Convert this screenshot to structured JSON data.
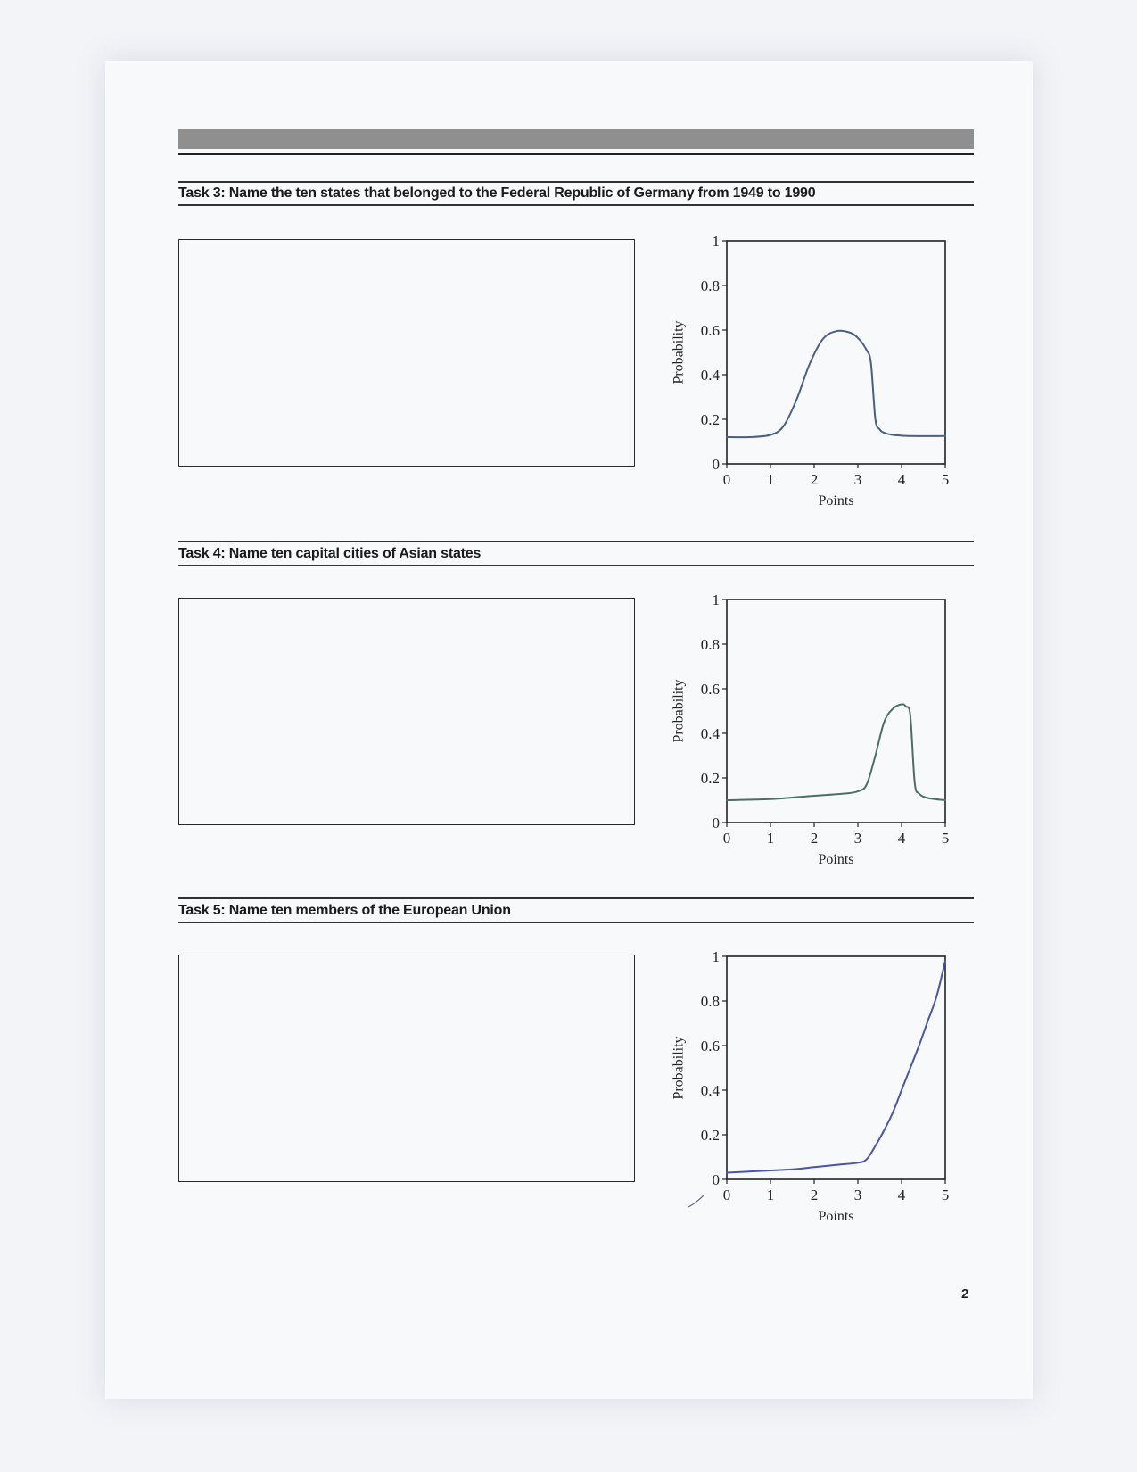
{
  "tasks": [
    {
      "title": "Task 3: Name the ten states that belonged to the Federal Republic of Germany from 1949 to 1990"
    },
    {
      "title": "Task 4: Name ten capital cities of Asian states"
    },
    {
      "title": "Task 5: Name ten members of the European Union"
    }
  ],
  "page_number": "2",
  "colors": {
    "curve_task3": "#4a5f85",
    "curve_task4": "#4d6f63",
    "curve_task5": "#4b55a8"
  },
  "chart_data": [
    {
      "type": "line",
      "xlabel": "Points",
      "ylabel": "Probability",
      "xlim": [
        0,
        5
      ],
      "ylim": [
        0,
        1
      ],
      "xticks": [
        "0",
        "1",
        "2",
        "3",
        "4",
        "5"
      ],
      "yticks": [
        "0",
        "0.2",
        "0.4",
        "0.6",
        "0.8",
        "1"
      ],
      "x": [
        0,
        0.5,
        1.0,
        1.3,
        1.6,
        1.9,
        2.2,
        2.5,
        2.8,
        3.0,
        3.2,
        3.3,
        3.4,
        3.5,
        3.6,
        3.8,
        4.2,
        5.0
      ],
      "y": [
        0.12,
        0.12,
        0.13,
        0.17,
        0.29,
        0.45,
        0.56,
        0.595,
        0.59,
        0.565,
        0.51,
        0.45,
        0.2,
        0.155,
        0.14,
        0.13,
        0.125,
        0.125
      ]
    },
    {
      "type": "line",
      "xlabel": "Points",
      "ylabel": "Probability",
      "xlim": [
        0,
        5
      ],
      "ylim": [
        0,
        1
      ],
      "xticks": [
        "0",
        "1",
        "2",
        "3",
        "4",
        "5"
      ],
      "yticks": [
        "0",
        "0.2",
        "0.4",
        "0.6",
        "0.8",
        "1"
      ],
      "x": [
        0,
        1,
        2,
        2.7,
        3.0,
        3.2,
        3.4,
        3.6,
        3.8,
        4.0,
        4.1,
        4.2,
        4.3,
        4.4,
        4.6,
        5.0
      ],
      "y": [
        0.1,
        0.105,
        0.12,
        0.13,
        0.14,
        0.17,
        0.3,
        0.45,
        0.51,
        0.53,
        0.52,
        0.48,
        0.18,
        0.13,
        0.11,
        0.1
      ]
    },
    {
      "type": "line",
      "xlabel": "Points",
      "ylabel": "Probability",
      "xlim": [
        0,
        5
      ],
      "ylim": [
        0,
        1
      ],
      "xticks": [
        "0",
        "1",
        "2",
        "3",
        "4",
        "5"
      ],
      "yticks": [
        "0",
        "0.2",
        "0.4",
        "0.6",
        "0.8",
        "1"
      ],
      "x": [
        0,
        0.5,
        1,
        1.5,
        2,
        2.5,
        3.0,
        3.2,
        3.4,
        3.6,
        3.8,
        4.0,
        4.2,
        4.4,
        4.6,
        4.8,
        5.0
      ],
      "y": [
        0.03,
        0.035,
        0.04,
        0.045,
        0.055,
        0.065,
        0.075,
        0.09,
        0.15,
        0.22,
        0.3,
        0.4,
        0.5,
        0.6,
        0.71,
        0.82,
        0.98
      ]
    }
  ]
}
